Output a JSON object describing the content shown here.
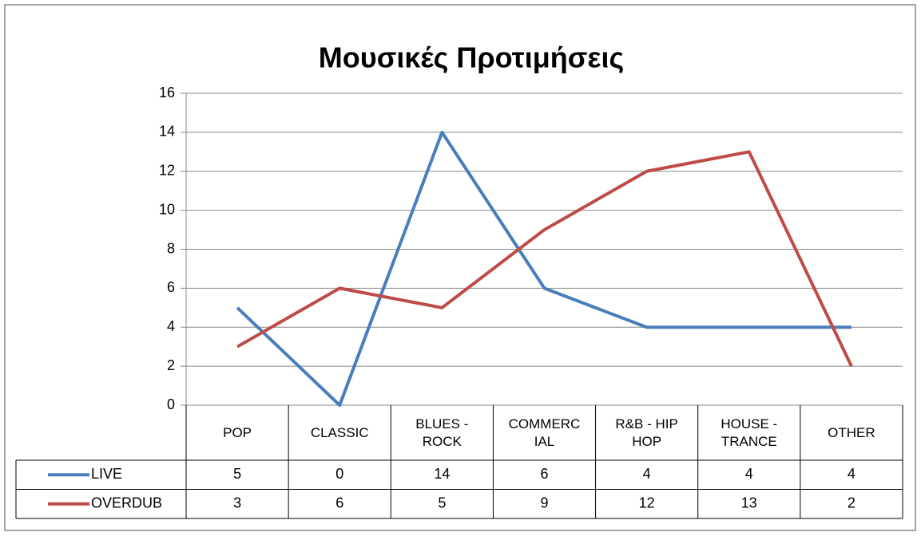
{
  "chart_data": {
    "type": "line",
    "title": "Μουσικές Προτιμήσεις",
    "categories": [
      "POP",
      "CLASSIC",
      "BLUES - ROCK",
      "COMMERCIAL",
      "R&B - HIP HOP",
      "HOUSE - TRANCE",
      "OTHER"
    ],
    "series": [
      {
        "name": "LIVE",
        "color": "#4a7ebb",
        "values": [
          5,
          0,
          14,
          6,
          4,
          4,
          4
        ]
      },
      {
        "name": "OVERDUB",
        "color": "#be4b48",
        "values": [
          3,
          6,
          5,
          9,
          12,
          13,
          2
        ]
      }
    ],
    "ylim": [
      0,
      16
    ],
    "yticks": [
      0,
      2,
      4,
      6,
      8,
      10,
      12,
      14,
      16
    ],
    "grid": true,
    "data_table": true
  }
}
